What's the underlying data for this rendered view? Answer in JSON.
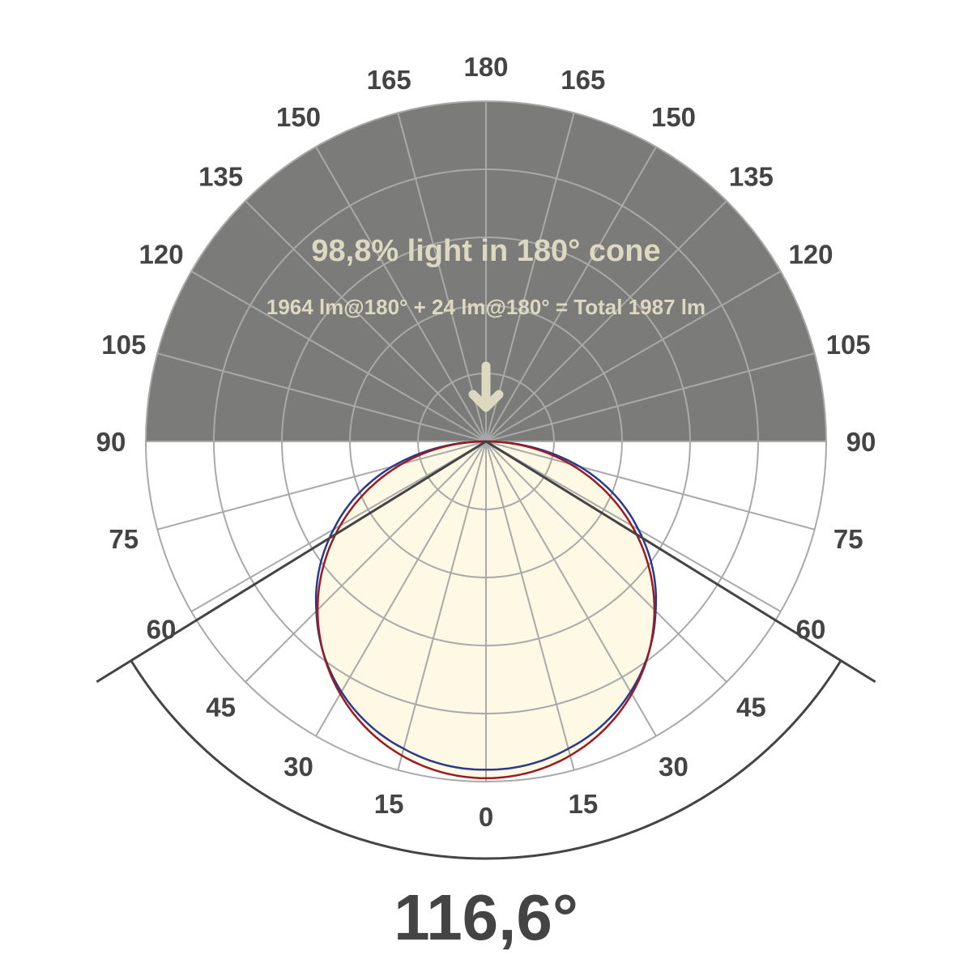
{
  "chart_data": {
    "type": "polar-line",
    "title": "98,8% light in 180° cone",
    "subtitle": "1964 lm@180° + 24 lm@180° = Total 1987 lm",
    "beam_angle_label": "116,6°",
    "beam_angle_deg": 116.6,
    "angle_tick_labels_left": [
      "0",
      "15",
      "30",
      "45",
      "60",
      "75",
      "90",
      "105",
      "120",
      "135",
      "150",
      "165",
      "180"
    ],
    "angle_tick_labels_right": [
      "15",
      "30",
      "45",
      "60",
      "75",
      "90",
      "105",
      "120",
      "135",
      "150",
      "165"
    ],
    "radial_rings": 5,
    "grid": true,
    "series": [
      {
        "color": "#2b3a8c",
        "angles": [
          0,
          15,
          30,
          45,
          60,
          75,
          90
        ],
        "values": [
          0.965,
          0.935,
          0.85,
          0.705,
          0.517,
          0.285,
          0
        ]
      },
      {
        "color": "#9a1b22",
        "angles": [
          0,
          15,
          30,
          45,
          60,
          75,
          90
        ],
        "values": [
          0.99,
          0.956,
          0.857,
          0.7,
          0.495,
          0.256,
          0
        ]
      }
    ],
    "colors": {
      "upper_half": "#7b7b7a",
      "fill": "#fdf9e4",
      "grid": "#a9a9a9",
      "label": "#444444",
      "annotation": "#ddd8c0"
    }
  }
}
